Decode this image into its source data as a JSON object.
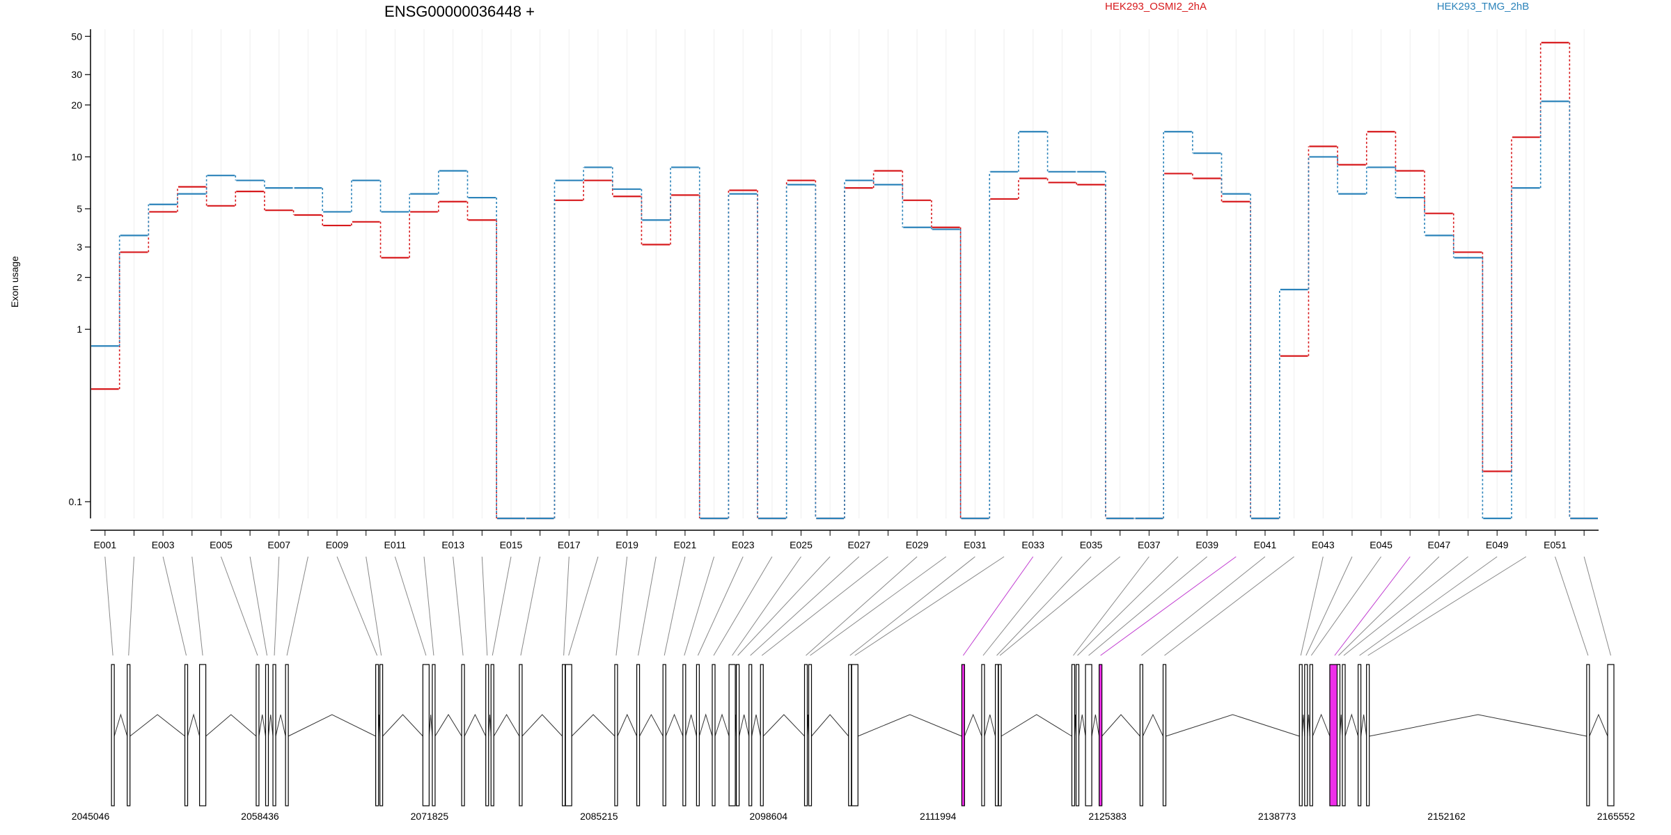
{
  "title": "ENSG00000036448 +",
  "ylabel": "Exon usage",
  "legend": [
    {
      "label": "HEK293_OSMI2_2hA",
      "color": "#d7191c"
    },
    {
      "label": "HEK293_TMG_2hB",
      "color": "#2b83ba"
    }
  ],
  "chart_data": {
    "type": "line",
    "title": "ENSG00000036448 +",
    "ylabel": "Exon usage",
    "yscale": "log",
    "ylim": [
      0.08,
      55
    ],
    "yticks": [
      "0.1",
      "1",
      "2",
      "3",
      "5",
      "10",
      "20",
      "30",
      "50"
    ],
    "categories": [
      "E001",
      "E002",
      "E003",
      "E004",
      "E005",
      "E006",
      "E007",
      "E008",
      "E009",
      "E010",
      "E011",
      "E012",
      "E013",
      "E014",
      "E015",
      "E016",
      "E017",
      "E018",
      "E019",
      "E020",
      "E021",
      "E022",
      "E023",
      "E024",
      "E025",
      "E026",
      "E027",
      "E028",
      "E029",
      "E030",
      "E031",
      "E032",
      "E033",
      "E034",
      "E035",
      "E036",
      "E037",
      "E038",
      "E039",
      "E040",
      "E041",
      "E042",
      "E043",
      "E044",
      "E045",
      "E046",
      "E047",
      "E048",
      "E049",
      "E050",
      "E051",
      "E052"
    ],
    "xtick_labels": [
      "E001",
      "E003",
      "E005",
      "E007",
      "E009",
      "E011",
      "E013",
      "E015",
      "E017",
      "E019",
      "E021",
      "E023",
      "E025",
      "E027",
      "E029",
      "E031",
      "E033",
      "E035",
      "E037",
      "E039",
      "E041",
      "E043",
      "E045",
      "E047",
      "E049",
      "E051"
    ],
    "series": [
      {
        "name": "HEK293_OSMI2_2hA",
        "color": "#d7191c",
        "values": [
          0.45,
          2.8,
          4.8,
          6.7,
          5.2,
          6.3,
          4.9,
          4.6,
          4.0,
          4.2,
          2.6,
          4.8,
          5.5,
          4.3,
          0.08,
          0.08,
          5.6,
          7.3,
          5.9,
          3.1,
          6.0,
          0.08,
          6.4,
          0.08,
          7.3,
          0.08,
          6.6,
          8.3,
          5.6,
          3.9,
          0.08,
          5.7,
          7.5,
          7.1,
          6.9,
          0.08,
          0.08,
          8.0,
          7.5,
          5.5,
          0.08,
          0.7,
          11.5,
          9.0,
          14.0,
          8.3,
          4.7,
          2.8,
          0.15,
          13.0,
          46.0,
          0.08
        ]
      },
      {
        "name": "HEK293_TMG_2hB",
        "color": "#2b83ba",
        "values": [
          0.8,
          3.5,
          5.3,
          6.1,
          7.8,
          7.3,
          6.6,
          6.6,
          4.8,
          7.3,
          4.8,
          6.1,
          8.3,
          5.8,
          0.08,
          0.08,
          7.3,
          8.7,
          6.5,
          4.3,
          8.7,
          0.08,
          6.1,
          0.08,
          6.9,
          0.08,
          7.3,
          6.9,
          3.9,
          3.8,
          0.08,
          8.2,
          14.0,
          8.2,
          8.2,
          0.08,
          0.08,
          14.0,
          10.5,
          6.1,
          0.08,
          1.7,
          10.0,
          6.1,
          8.7,
          5.8,
          3.5,
          2.6,
          0.08,
          6.6,
          21.0,
          0.08
        ]
      }
    ]
  },
  "genome_axis": {
    "tick_labels": [
      "2045046",
      "2058436",
      "2071825",
      "2085215",
      "2098604",
      "2111994",
      "2125383",
      "2138773",
      "2152162",
      "2165552"
    ],
    "highlight_color": "#ee2ee9"
  }
}
